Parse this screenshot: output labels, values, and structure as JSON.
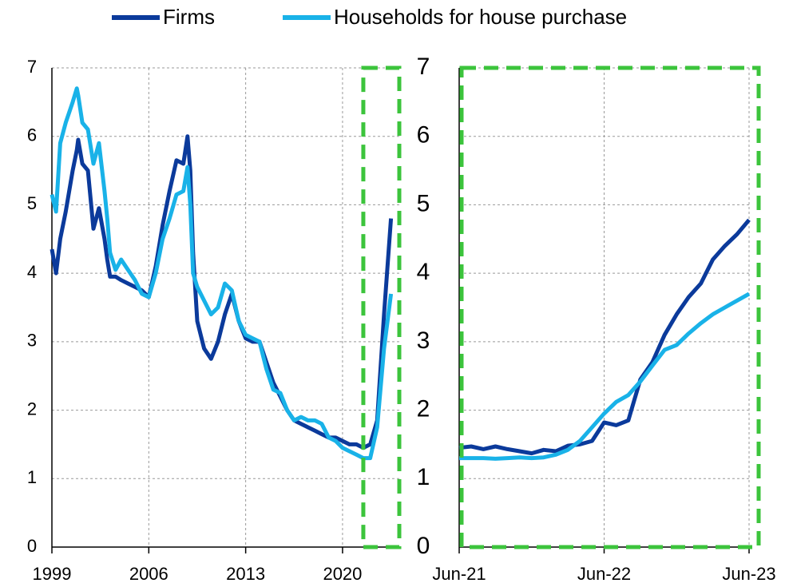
{
  "chart_data": [
    {
      "type": "line",
      "legend": "top",
      "grid": true,
      "xlim": [
        1999,
        2024.1
      ],
      "xticks": [
        1999,
        2006,
        2013,
        2020
      ],
      "ylim": [
        0,
        7
      ],
      "yticks": [
        0,
        1,
        2,
        3,
        4,
        5,
        6,
        7
      ],
      "x": [
        1999.0,
        1999.3,
        1999.6,
        2000.0,
        2000.5,
        2000.8,
        2000.9,
        2001.2,
        2001.6,
        2002.0,
        2002.4,
        2002.8,
        2003.0,
        2003.2,
        2003.6,
        2004.0,
        2004.5,
        2005.0,
        2005.5,
        2006.0,
        2006.5,
        2007.0,
        2007.5,
        2008.0,
        2008.5,
        2008.8,
        2009.0,
        2009.2,
        2009.5,
        2010.0,
        2010.5,
        2011.0,
        2011.5,
        2012.0,
        2012.5,
        2013.0,
        2013.5,
        2014.0,
        2014.5,
        2015.0,
        2015.5,
        2016.0,
        2016.5,
        2017.0,
        2017.5,
        2018.0,
        2018.5,
        2019.0,
        2019.5,
        2020.0,
        2020.5,
        2021.0,
        2021.5,
        2022.0,
        2022.5,
        2023.0,
        2023.5
      ],
      "series": [
        {
          "name": "Firms",
          "color": "#0b3a9b",
          "values": [
            4.35,
            4.0,
            4.5,
            4.9,
            5.5,
            5.8,
            5.95,
            5.6,
            5.5,
            4.65,
            4.95,
            4.5,
            4.2,
            3.95,
            3.95,
            3.9,
            3.85,
            3.8,
            3.75,
            3.65,
            4.1,
            4.7,
            5.2,
            5.65,
            5.6,
            6.0,
            5.5,
            4.3,
            3.3,
            2.9,
            2.75,
            3.0,
            3.4,
            3.7,
            3.3,
            3.05,
            3.0,
            3.0,
            2.7,
            2.4,
            2.2,
            2.0,
            1.85,
            1.8,
            1.75,
            1.7,
            1.65,
            1.6,
            1.6,
            1.55,
            1.5,
            1.5,
            1.45,
            1.5,
            1.85,
            3.4,
            4.8
          ]
        },
        {
          "name": "Households for house purchase",
          "color": "#19b2e8",
          "values": [
            5.15,
            4.9,
            5.9,
            6.2,
            6.5,
            6.7,
            6.6,
            6.2,
            6.1,
            5.6,
            5.9,
            5.2,
            4.8,
            4.3,
            4.05,
            4.2,
            4.05,
            3.9,
            3.7,
            3.65,
            4.0,
            4.5,
            4.8,
            5.15,
            5.2,
            5.55,
            5.0,
            4.0,
            3.8,
            3.6,
            3.4,
            3.5,
            3.85,
            3.75,
            3.3,
            3.1,
            3.05,
            3.0,
            2.6,
            2.3,
            2.25,
            2.0,
            1.85,
            1.9,
            1.85,
            1.85,
            1.8,
            1.6,
            1.55,
            1.45,
            1.4,
            1.35,
            1.3,
            1.3,
            1.75,
            2.9,
            3.7
          ]
        }
      ]
    },
    {
      "type": "line",
      "grid": true,
      "xlim": [
        2021.5,
        2023.5
      ],
      "xticks": [
        {
          "value": 2021.5,
          "label": "Jun-21"
        },
        {
          "value": 2022.5,
          "label": "Jun-22"
        },
        {
          "value": 2023.5,
          "label": "Jun-23"
        }
      ],
      "ylim": [
        0,
        7
      ],
      "yticks": [
        0,
        1,
        2,
        3,
        4,
        5,
        6,
        7
      ],
      "x": [
        2021.5,
        2021.583,
        2021.667,
        2021.75,
        2021.833,
        2021.917,
        2022.0,
        2022.083,
        2022.167,
        2022.25,
        2022.333,
        2022.417,
        2022.5,
        2022.583,
        2022.667,
        2022.75,
        2022.833,
        2022.917,
        2023.0,
        2023.083,
        2023.167,
        2023.25,
        2023.333,
        2023.417,
        2023.5
      ],
      "series": [
        {
          "color": "#0b3a9b",
          "values": [
            1.45,
            1.47,
            1.43,
            1.47,
            1.43,
            1.4,
            1.37,
            1.42,
            1.4,
            1.48,
            1.5,
            1.55,
            1.82,
            1.78,
            1.85,
            2.45,
            2.7,
            3.1,
            3.4,
            3.65,
            3.85,
            4.2,
            4.4,
            4.57,
            4.78
          ]
        },
        {
          "color": "#19b2e8",
          "values": [
            1.3,
            1.3,
            1.3,
            1.29,
            1.3,
            1.31,
            1.3,
            1.31,
            1.35,
            1.42,
            1.55,
            1.75,
            1.95,
            2.12,
            2.22,
            2.42,
            2.65,
            2.88,
            2.95,
            3.12,
            3.27,
            3.4,
            3.5,
            3.6,
            3.7
          ]
        }
      ]
    }
  ]
}
